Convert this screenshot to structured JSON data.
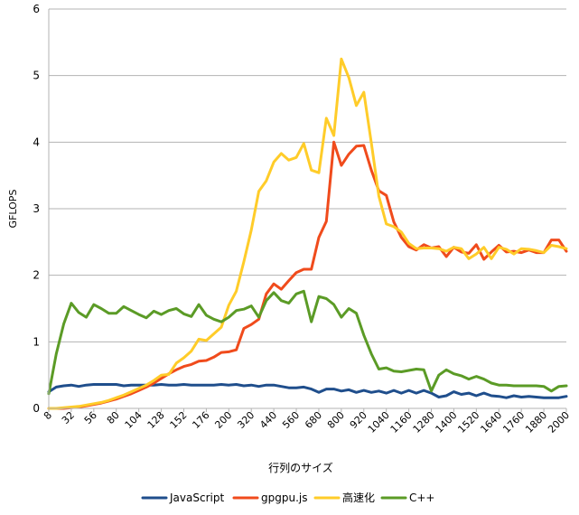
{
  "chart_data": {
    "type": "line",
    "title": "",
    "xlabel": "行列のサイズ",
    "ylabel": "GFLOPS",
    "ylim": [
      0,
      6
    ],
    "yticks": [
      "0",
      "1",
      "2",
      "3",
      "4",
      "5",
      "6"
    ],
    "grid": "horizontal",
    "legend_position": "bottom",
    "x_tick_labels": [
      "8",
      "32",
      "56",
      "80",
      "104",
      "128",
      "152",
      "176",
      "200",
      "320",
      "440",
      "560",
      "680",
      "800",
      "920",
      "1040",
      "1160",
      "1280",
      "1400",
      "1520",
      "1640",
      "1760",
      "1880",
      "2000"
    ],
    "x": [
      8,
      16,
      24,
      32,
      40,
      48,
      56,
      64,
      72,
      80,
      88,
      96,
      104,
      112,
      120,
      128,
      136,
      144,
      152,
      160,
      168,
      176,
      184,
      192,
      200,
      240,
      280,
      320,
      360,
      400,
      440,
      480,
      520,
      560,
      600,
      640,
      680,
      720,
      760,
      800,
      840,
      880,
      920,
      960,
      1000,
      1040,
      1080,
      1120,
      1160,
      1200,
      1240,
      1280,
      1320,
      1360,
      1400,
      1440,
      1480,
      1520,
      1560,
      1600,
      1640,
      1680,
      1720,
      1760,
      1800,
      1840,
      1880,
      1920,
      1960,
      2000
    ],
    "series": [
      {
        "name": "JavaScript",
        "color": "#1f4e8c",
        "values": [
          0.25,
          0.32,
          0.34,
          0.35,
          0.33,
          0.35,
          0.36,
          0.36,
          0.36,
          0.36,
          0.34,
          0.35,
          0.35,
          0.35,
          0.35,
          0.36,
          0.35,
          0.35,
          0.36,
          0.35,
          0.35,
          0.35,
          0.35,
          0.36,
          0.35,
          0.36,
          0.34,
          0.35,
          0.33,
          0.35,
          0.35,
          0.33,
          0.31,
          0.31,
          0.32,
          0.29,
          0.24,
          0.29,
          0.29,
          0.26,
          0.28,
          0.24,
          0.27,
          0.24,
          0.26,
          0.23,
          0.27,
          0.23,
          0.27,
          0.23,
          0.27,
          0.23,
          0.17,
          0.19,
          0.25,
          0.21,
          0.23,
          0.19,
          0.23,
          0.19,
          0.18,
          0.16,
          0.19,
          0.17,
          0.18,
          0.17,
          0.16,
          0.16,
          0.16,
          0.18
        ]
      },
      {
        "name": "gpgpu.js",
        "color": "#f04b1c",
        "values": [
          0.0,
          0.0,
          0.0,
          0.01,
          0.02,
          0.04,
          0.06,
          0.08,
          0.11,
          0.14,
          0.18,
          0.22,
          0.27,
          0.32,
          0.38,
          0.45,
          0.52,
          0.58,
          0.63,
          0.66,
          0.71,
          0.72,
          0.77,
          0.84,
          0.85,
          0.88,
          1.2,
          1.26,
          1.34,
          1.72,
          1.87,
          1.79,
          1.92,
          2.04,
          2.09,
          2.09,
          2.57,
          2.81,
          4.0,
          3.65,
          3.82,
          3.94,
          3.95,
          3.58,
          3.27,
          3.2,
          2.8,
          2.57,
          2.43,
          2.38,
          2.46,
          2.41,
          2.43,
          2.28,
          2.42,
          2.35,
          2.33,
          2.46,
          2.24,
          2.35,
          2.45,
          2.35,
          2.36,
          2.34,
          2.38,
          2.34,
          2.34,
          2.53,
          2.53,
          2.36
        ]
      },
      {
        "name": "高速化",
        "color": "#ffcc29",
        "values": [
          0.0,
          0.0,
          0.01,
          0.02,
          0.03,
          0.05,
          0.07,
          0.09,
          0.12,
          0.16,
          0.2,
          0.25,
          0.3,
          0.35,
          0.42,
          0.5,
          0.51,
          0.68,
          0.76,
          0.86,
          1.04,
          1.02,
          1.12,
          1.22,
          1.55,
          1.76,
          2.2,
          2.68,
          3.26,
          3.42,
          3.7,
          3.83,
          3.73,
          3.77,
          3.98,
          3.58,
          3.54,
          4.36,
          4.1,
          5.25,
          4.97,
          4.55,
          4.75,
          3.99,
          3.19,
          2.77,
          2.73,
          2.65,
          2.48,
          2.4,
          2.41,
          2.41,
          2.4,
          2.36,
          2.42,
          2.4,
          2.25,
          2.32,
          2.42,
          2.25,
          2.42,
          2.39,
          2.32,
          2.4,
          2.39,
          2.37,
          2.34,
          2.45,
          2.43,
          2.4
        ]
      },
      {
        "name": "C++",
        "color": "#5b9b26",
        "values": [
          0.22,
          0.82,
          1.27,
          1.58,
          1.44,
          1.37,
          1.56,
          1.5,
          1.43,
          1.43,
          1.53,
          1.47,
          1.41,
          1.36,
          1.46,
          1.41,
          1.47,
          1.5,
          1.42,
          1.38,
          1.56,
          1.4,
          1.34,
          1.3,
          1.37,
          1.47,
          1.49,
          1.54,
          1.37,
          1.62,
          1.74,
          1.62,
          1.58,
          1.72,
          1.76,
          1.3,
          1.68,
          1.65,
          1.56,
          1.37,
          1.5,
          1.43,
          1.1,
          0.82,
          0.59,
          0.61,
          0.56,
          0.55,
          0.57,
          0.59,
          0.58,
          0.26,
          0.5,
          0.58,
          0.52,
          0.49,
          0.44,
          0.48,
          0.44,
          0.38,
          0.35,
          0.35,
          0.34,
          0.34,
          0.34,
          0.34,
          0.33,
          0.26,
          0.33,
          0.34
        ]
      }
    ]
  }
}
